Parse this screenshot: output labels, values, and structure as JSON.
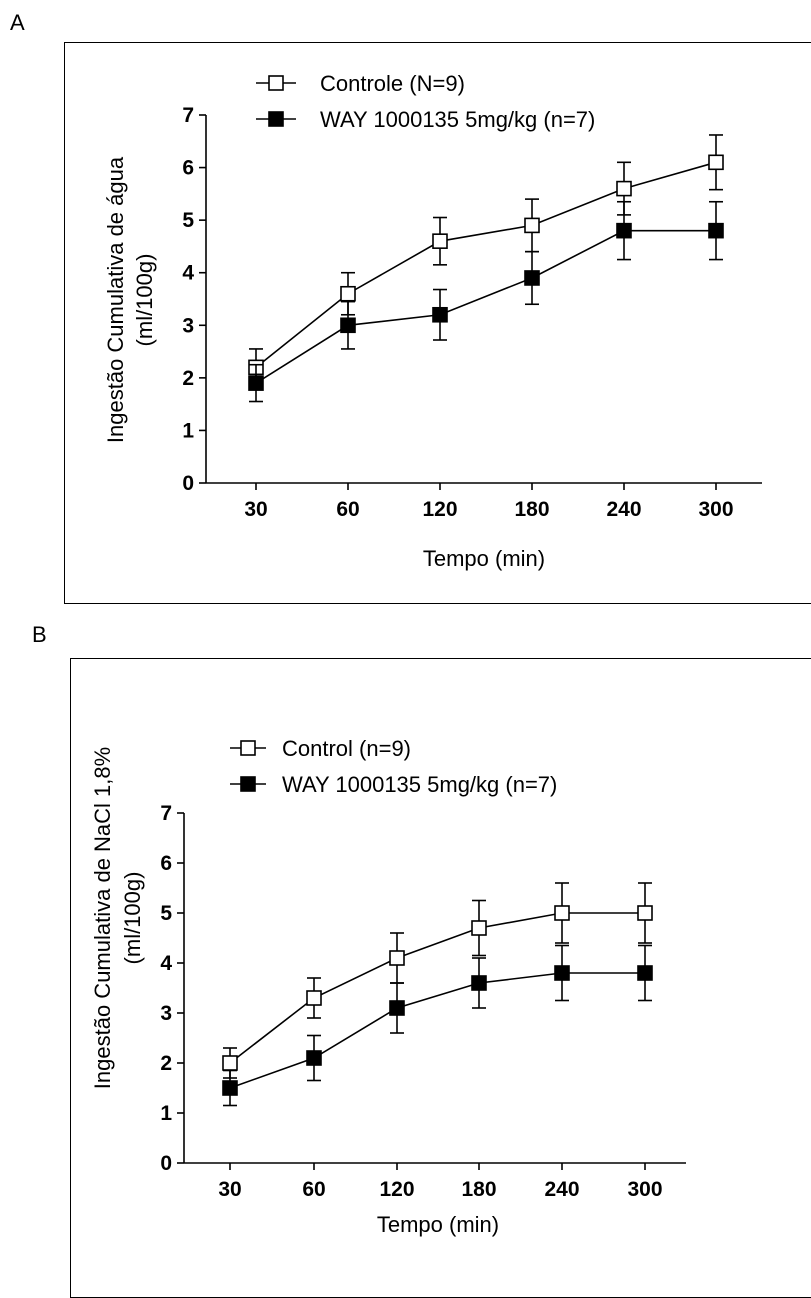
{
  "panels": [
    {
      "letter": "A"
    },
    {
      "letter": "B"
    }
  ],
  "chart_data": [
    {
      "type": "line",
      "panel": "A",
      "categories": [
        "30",
        "60",
        "120",
        "180",
        "240",
        "300"
      ],
      "xlabel": "Tempo (min)",
      "ylabel_line1": "Ingestão Cumulativa de  água",
      "ylabel_line2": "(ml/100g)",
      "ylim": [
        0,
        7
      ],
      "yticks": [
        "0",
        "1",
        "2",
        "3",
        "4",
        "5",
        "6",
        "7"
      ],
      "legend_position": "top-left",
      "grid": false,
      "series": [
        {
          "name": "Controle (N=9)",
          "marker": "open-square",
          "values": [
            2.2,
            3.6,
            4.6,
            4.9,
            5.6,
            6.1
          ],
          "errors": [
            0.35,
            0.4,
            0.45,
            0.5,
            0.5,
            0.52
          ]
        },
        {
          "name": "WAY 1000135 5mg/kg (n=7)",
          "marker": "filled-square",
          "values": [
            1.9,
            3.0,
            3.2,
            3.9,
            4.8,
            4.8
          ],
          "errors": [
            0.35,
            0.45,
            0.48,
            0.5,
            0.55,
            0.55
          ]
        }
      ]
    },
    {
      "type": "line",
      "panel": "B",
      "categories": [
        "30",
        "60",
        "120",
        "180",
        "240",
        "300"
      ],
      "xlabel": "Tempo (min)",
      "ylabel_line1": "Ingestão Cumulativa de  NaCl 1,8%",
      "ylabel_line2": "(ml/100g)",
      "ylim": [
        0,
        7
      ],
      "yticks": [
        "0",
        "1",
        "2",
        "3",
        "4",
        "5",
        "6",
        "7"
      ],
      "legend_position": "top-left",
      "grid": false,
      "series": [
        {
          "name": "Control (n=9)",
          "marker": "open-square",
          "values": [
            2.0,
            3.3,
            4.1,
            4.7,
            5.0,
            5.0
          ],
          "errors": [
            0.3,
            0.4,
            0.5,
            0.55,
            0.6,
            0.6
          ]
        },
        {
          "name": "WAY 1000135 5mg/kg (n=7)",
          "marker": "filled-square",
          "values": [
            1.5,
            2.1,
            3.1,
            3.6,
            3.8,
            3.8
          ],
          "errors": [
            0.35,
            0.45,
            0.5,
            0.5,
            0.55,
            0.55
          ]
        }
      ]
    }
  ]
}
